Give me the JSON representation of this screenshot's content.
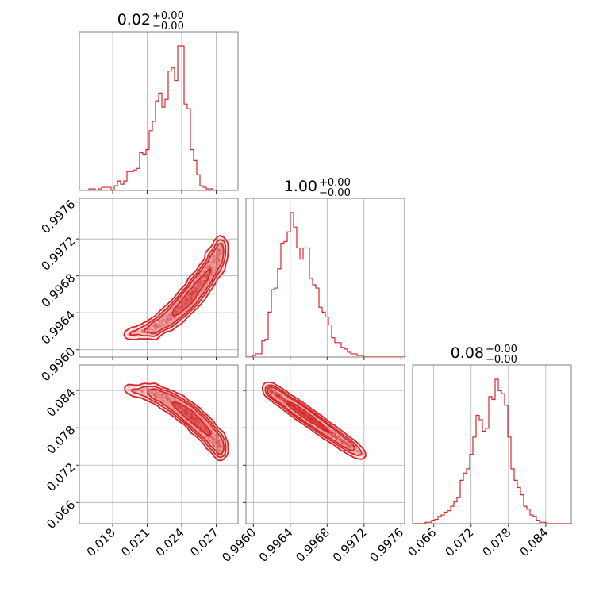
{
  "chart_data": {
    "type": "corner",
    "parameters": [
      {
        "title_value": "0.02",
        "title_sup": "+0.00",
        "title_sub": "−0.00",
        "range": [
          0.0151,
          0.0289
        ],
        "ticks": [
          0.018,
          0.021,
          0.024,
          0.027
        ],
        "tick_labels": [
          "0.018",
          "0.021",
          "0.024",
          "0.027"
        ],
        "hist_edges_start": 0.0151,
        "hist_bin_width": 0.000276,
        "hist_counts": [
          0,
          0,
          0,
          1,
          1,
          0,
          1,
          2,
          2,
          2,
          0,
          3,
          6,
          4,
          6,
          12,
          12,
          13,
          14,
          24,
          23,
          26,
          38,
          44,
          57,
          62,
          53,
          58,
          76,
          78,
          70,
          92,
          92,
          55,
          52,
          26,
          19,
          10,
          3,
          2,
          1,
          1,
          0,
          0,
          0,
          0,
          0,
          0,
          0,
          0
        ]
      },
      {
        "title_value": "1.00",
        "title_sup": "+0.00",
        "title_sub": "−0.00",
        "range": [
          0.99592,
          0.99764
        ],
        "ticks": [
          0.996,
          0.9964,
          0.9968,
          0.9972,
          0.9976
        ],
        "tick_labels": [
          "0.9960",
          "0.9964",
          "0.9968",
          "0.9972",
          "0.9976"
        ],
        "hist_edges_start": 0.99592,
        "hist_bin_width": 3.44e-05,
        "hist_counts": [
          0,
          0,
          1,
          2,
          2,
          10,
          11,
          28,
          42,
          43,
          55,
          71,
          72,
          78,
          90,
          81,
          68,
          61,
          68,
          68,
          49,
          45,
          43,
          31,
          28,
          25,
          20,
          12,
          9,
          9,
          6,
          5,
          3,
          2,
          2,
          1,
          1,
          0,
          0,
          0,
          0,
          0,
          0,
          0,
          0,
          0,
          0,
          0,
          0,
          0
        ]
      },
      {
        "title_value": "0.08",
        "title_sup": "+0.00",
        "title_sub": "−0.00",
        "range": [
          0.0626,
          0.0881
        ],
        "ticks": [
          0.066,
          0.072,
          0.078,
          0.084
        ],
        "tick_labels": [
          "0.066",
          "0.072",
          "0.078",
          "0.084"
        ],
        "hist_edges_start": 0.0626,
        "hist_bin_width": 0.00051,
        "hist_counts": [
          0,
          0,
          0,
          0,
          1,
          1,
          2,
          3,
          5,
          6,
          8,
          9,
          12,
          15,
          18,
          30,
          35,
          38,
          48,
          60,
          75,
          72,
          64,
          66,
          88,
          86,
          100,
          92,
          90,
          82,
          60,
          38,
          30,
          25,
          20,
          12,
          10,
          6,
          5,
          2,
          1,
          1,
          0,
          0,
          0,
          0,
          0,
          0,
          0,
          0
        ]
      }
    ],
    "contour_levels": 4,
    "color": "#d62728",
    "grid": true
  }
}
